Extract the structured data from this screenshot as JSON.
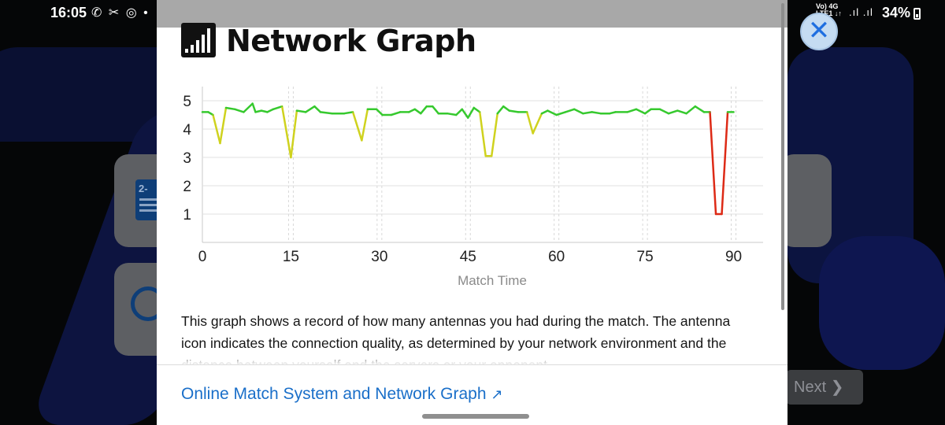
{
  "status_bar": {
    "time": "16:05",
    "left_icons": "✆ ✂ ◎ •",
    "network_top": "Vo) 4G",
    "network_bottom": "LTE1 ↓↑",
    "battery": "34%"
  },
  "modal": {
    "title": "Network Graph",
    "description": "This graph shows a record of how many antennas you had during the match. The antenna icon indicates the connection quality, as determined by your network environment and the distance between yourself and the servers or your opponent.",
    "link_label": "Online Match System and Network Graph",
    "link_arrow": "↗",
    "close_label": "✕"
  },
  "background": {
    "next_label": "Next",
    "doc_icon_text": "2-"
  },
  "chart_data": {
    "type": "line",
    "xlabel": "Match Time",
    "ylabel": "",
    "x_ticks": [
      0,
      15,
      30,
      45,
      60,
      75,
      90
    ],
    "y_ticks": [
      1,
      2,
      3,
      4,
      5
    ],
    "xlim": [
      0,
      95
    ],
    "ylim": [
      0,
      5.5
    ],
    "grid": true,
    "colors": {
      "good": "#36c92e",
      "mid": "#cfd21e",
      "bad": "#dd2a16"
    },
    "series": [
      {
        "x": [
          0,
          1,
          1.8,
          3,
          4,
          5.5,
          7,
          8.5,
          9,
          10,
          11,
          12,
          13.5,
          15,
          16,
          17.5,
          19,
          20,
          22,
          24,
          25.5,
          27,
          28,
          29.5,
          30.5,
          32,
          33.5,
          35,
          36,
          37,
          38,
          39,
          40,
          41.5,
          43,
          44,
          45,
          46,
          47,
          48,
          49,
          50,
          51,
          52,
          53.5,
          55,
          56,
          57.5,
          58.5,
          60,
          61.5,
          63,
          64.5,
          66,
          67.5,
          69,
          70,
          72,
          73.5,
          75,
          76,
          77.5,
          79,
          80.5,
          82,
          83.5,
          85,
          86,
          87,
          88,
          89,
          90
        ],
        "y": [
          4.6,
          4.6,
          4.5,
          3.5,
          4.75,
          4.7,
          4.6,
          4.9,
          4.6,
          4.65,
          4.6,
          4.7,
          4.8,
          3.0,
          4.65,
          4.6,
          4.8,
          4.6,
          4.55,
          4.55,
          4.6,
          3.6,
          4.7,
          4.7,
          4.5,
          4.5,
          4.6,
          4.6,
          4.7,
          4.55,
          4.8,
          4.8,
          4.55,
          4.55,
          4.5,
          4.7,
          4.4,
          4.75,
          4.6,
          3.05,
          3.05,
          4.55,
          4.8,
          4.65,
          4.6,
          4.6,
          3.85,
          4.55,
          4.65,
          4.5,
          4.6,
          4.7,
          4.55,
          4.6,
          4.55,
          4.55,
          4.6,
          4.6,
          4.7,
          4.55,
          4.7,
          4.7,
          4.55,
          4.65,
          4.55,
          4.8,
          4.6,
          4.6,
          1.0,
          1.0,
          4.6,
          4.6
        ]
      }
    ]
  }
}
